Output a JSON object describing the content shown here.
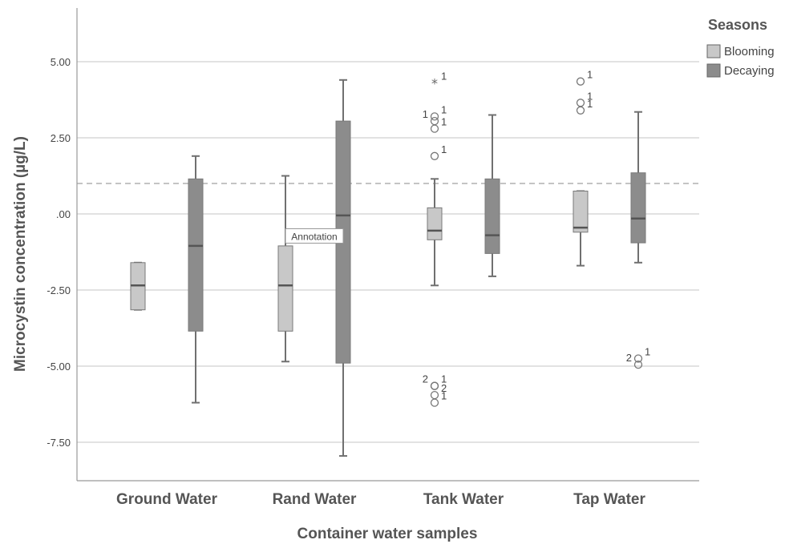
{
  "chart_data": {
    "type": "boxplot",
    "xlabel": "Container water samples",
    "ylabel": "Microcystin concentration (µg/L)",
    "ylim": [
      -8.7,
      6.6
    ],
    "yticks": [
      5.0,
      2.5,
      0.0,
      -2.5,
      -5.0,
      -7.5
    ],
    "ytick_labels": [
      "5.00",
      "2.50",
      ".00",
      "-2.50",
      "-5.00",
      "-7.50"
    ],
    "reference_line": 1.0,
    "grid": "horizontal",
    "legend": {
      "title": "Seasons",
      "placement": "top-right",
      "entries": [
        {
          "name": "Blooming",
          "color": "#c8c8c8"
        },
        {
          "name": "Decaying",
          "color": "#8c8c8c"
        }
      ]
    },
    "categories": [
      "Ground Water",
      "Rand Water",
      "Tank Water",
      "Tap Water"
    ],
    "series": [
      {
        "name": "Blooming",
        "color": "#c8c8c8",
        "boxes": [
          {
            "whisker_low": -3.15,
            "q1": -3.15,
            "median": -2.35,
            "q3": -1.6,
            "whisker_high": -1.6,
            "outliers": []
          },
          {
            "whisker_low": -4.85,
            "q1": -3.85,
            "median": -2.35,
            "q3": -1.05,
            "whisker_high": 1.25,
            "outliers": []
          },
          {
            "whisker_low": -2.35,
            "q1": -0.85,
            "median": -0.55,
            "q3": 0.2,
            "whisker_high": 1.15,
            "outliers": [
              {
                "y": 4.3,
                "marker": "star",
                "label": "1",
                "label_side": "right"
              },
              {
                "y": 3.2,
                "marker": "circle",
                "label": "1",
                "label_side": "right"
              },
              {
                "y": 3.05,
                "marker": "circle",
                "label": "1",
                "label_side": "left"
              },
              {
                "y": 2.8,
                "marker": "circle",
                "label": "1",
                "label_side": "right"
              },
              {
                "y": 1.9,
                "marker": "circle",
                "label": "1",
                "label_side": "right"
              },
              {
                "y": -5.65,
                "marker": "circle",
                "label": "1",
                "label_side": "right"
              },
              {
                "y": -5.65,
                "marker": "circle",
                "label": "2",
                "label_side": "left"
              },
              {
                "y": -5.95,
                "marker": "circle",
                "label": "2",
                "label_side": "right"
              },
              {
                "y": -6.2,
                "marker": "circle",
                "label": "1",
                "label_side": "right"
              }
            ]
          },
          {
            "whisker_low": -1.7,
            "q1": -0.6,
            "median": -0.45,
            "q3": 0.75,
            "whisker_high": 0.75,
            "outliers": [
              {
                "y": 4.35,
                "marker": "circle",
                "label": "1",
                "label_side": "right"
              },
              {
                "y": 3.65,
                "marker": "circle",
                "label": "1",
                "label_side": "right"
              },
              {
                "y": 3.4,
                "marker": "circle",
                "label": "1",
                "label_side": "right"
              }
            ]
          }
        ]
      },
      {
        "name": "Decaying",
        "color": "#8c8c8c",
        "boxes": [
          {
            "whisker_low": -6.2,
            "q1": -3.85,
            "median": -1.05,
            "q3": 1.15,
            "whisker_high": 1.9,
            "outliers": []
          },
          {
            "whisker_low": -7.95,
            "q1": -4.9,
            "median": -0.05,
            "q3": 3.05,
            "whisker_high": 4.4,
            "outliers": []
          },
          {
            "whisker_low": -2.05,
            "q1": -1.3,
            "median": -0.7,
            "q3": 1.15,
            "whisker_high": 3.25,
            "outliers": []
          },
          {
            "whisker_low": -1.6,
            "q1": -0.95,
            "median": -0.15,
            "q3": 1.35,
            "whisker_high": 3.35,
            "outliers": [
              {
                "y": -4.75,
                "marker": "circle",
                "label": "1",
                "label_side": "right"
              },
              {
                "y": -4.95,
                "marker": "circle",
                "label": "2",
                "label_side": "left"
              }
            ]
          }
        ]
      }
    ],
    "annotation": {
      "text": "Annotation",
      "category": "Rand Water",
      "y": -0.75
    }
  }
}
